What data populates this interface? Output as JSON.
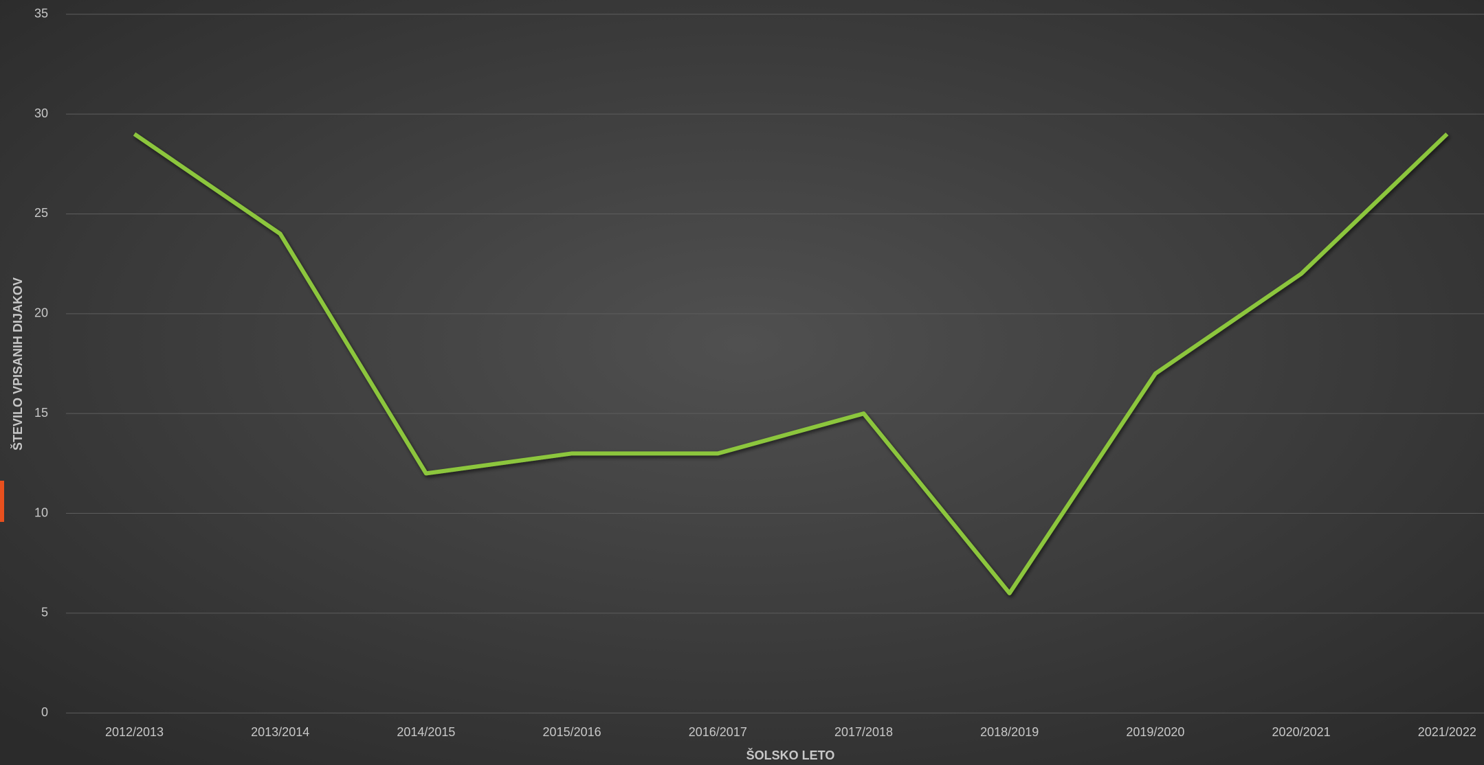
{
  "chart_data": {
    "type": "line",
    "x_label": "ŠOLSKO LETO",
    "y_label": "ŠTEVILO VPISANIH DIJAKOV",
    "categories": [
      "2012/2013",
      "2013/2014",
      "2014/2015",
      "2015/2016",
      "2016/2017",
      "2017/2018",
      "2018/2019",
      "2019/2020",
      "2020/2021",
      "2021/2022"
    ],
    "values": [
      29,
      24,
      12,
      13,
      13,
      15,
      6,
      17,
      22,
      29
    ],
    "color": "#8cc63e",
    "ylim": [
      0,
      35
    ],
    "yticks": [
      0,
      5,
      10,
      15,
      20,
      25,
      30,
      35
    ],
    "grid": true
  }
}
